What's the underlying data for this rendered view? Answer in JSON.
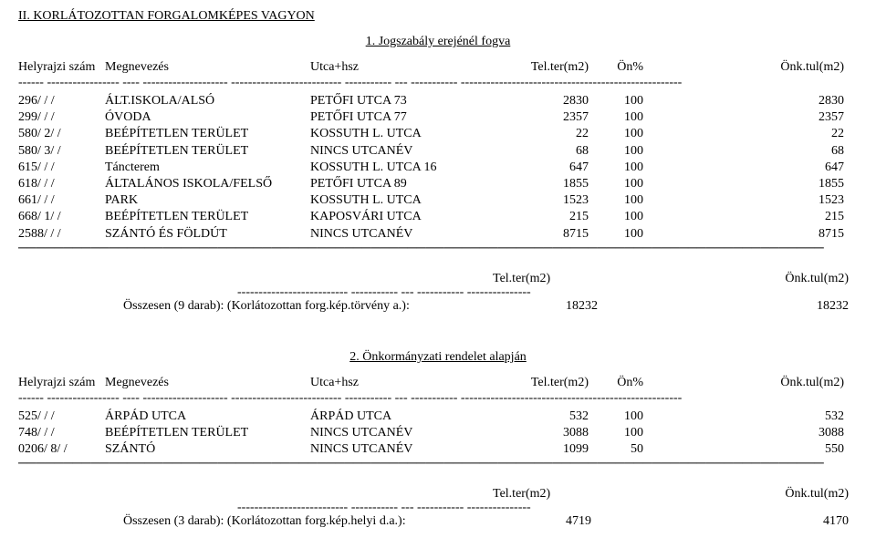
{
  "title": "II. KORLÁTOZOTTAN FORGALOMKÉPES VAGYON",
  "section1": {
    "subtitle": "1. Jogszabály erejénél fogva",
    "headers": {
      "ref": "Helyrajzi szám",
      "name": "Megnevezés",
      "addr": "Utca+hsz",
      "ter": "Tel.ter(m2)",
      "pct": "Ön%",
      "tul": "Önk.tul(m2)"
    },
    "dash_top": "------ ----------------- ---- -------------------- -------------------------- ----------- --- ----------- ----------------------------------------------------",
    "rows": [
      {
        "ref": "296/  / /",
        "name": "ÁLT.ISKOLA/ALSÓ",
        "addr": "PETŐFI UTCA 73",
        "ter": "2830",
        "pct": "100",
        "tul": "2830"
      },
      {
        "ref": "299/  / /",
        "name": "ÓVODA",
        "addr": "PETŐFI UTCA 77",
        "ter": "2357",
        "pct": "100",
        "tul": "2357"
      },
      {
        "ref": "580/  2/ /",
        "name": "BEÉPÍTETLEN TERÜLET",
        "addr": "KOSSUTH L. UTCA",
        "ter": "22",
        "pct": "100",
        "tul": "22"
      },
      {
        "ref": "580/  3/ /",
        "name": "BEÉPÍTETLEN TERÜLET",
        "addr": "NINCS UTCANÉV",
        "ter": "68",
        "pct": "100",
        "tul": "68"
      },
      {
        "ref": "615/  / /",
        "name": "Táncterem",
        "addr": "KOSSUTH L. UTCA 16",
        "ter": "647",
        "pct": "100",
        "tul": "647"
      },
      {
        "ref": "618/  / /",
        "name": "ÁLTALÁNOS ISKOLA/FELSŐ",
        "addr": "PETŐFI UTCA 89",
        "ter": "1855",
        "pct": "100",
        "tul": "1855"
      },
      {
        "ref": "661/  / /",
        "name": "PARK",
        "addr": "KOSSUTH L. UTCA",
        "ter": "1523",
        "pct": "100",
        "tul": "1523"
      },
      {
        "ref": "668/  1/ /",
        "name": "BEÉPÍTETLEN TERÜLET",
        "addr": "KAPOSVÁRI UTCA",
        "ter": "215",
        "pct": "100",
        "tul": "215"
      },
      {
        "ref": "2588/  / /",
        "name": "SZÁNTÓ ÉS FÖLDÚT",
        "addr": "NINCS UTCANÉV",
        "ter": "8715",
        "pct": "100",
        "tul": "8715"
      }
    ],
    "dash_bottom": "─────────────────────────────────────────────────────────────────────────────────────────",
    "summary": {
      "h_ter": "Tel.ter(m2)",
      "h_tul": "Önk.tul(m2)",
      "dash": "-------------------------- ----------- --- ----------- ---------------",
      "label": "Összesen (9 darab): (Korlátozottan forg.kép.törvény a.):",
      "val1": "18232",
      "val2": "18232"
    }
  },
  "section2": {
    "subtitle": "2.  Önkormányzati rendelet alapján",
    "headers": {
      "ref": "Helyrajzi szám",
      "name": "Megnevezés",
      "addr": "Utca+hsz",
      "ter": "Tel.ter(m2)",
      "pct": "Ön%",
      "tul": "Önk.tul(m2)"
    },
    "dash_top": "------ ----------------- ---- -------------------- -------------------------- ----------- --- ----------- ----------------------------------------------------",
    "rows": [
      {
        "ref": "525/  / /",
        "name": "ÁRPÁD UTCA",
        "addr": "ÁRPÁD UTCA",
        "ter": "532",
        "pct": "100",
        "tul": "532"
      },
      {
        "ref": "748/  / /",
        "name": "BEÉPÍTETLEN TERÜLET",
        "addr": "NINCS UTCANÉV",
        "ter": "3088",
        "pct": "100",
        "tul": "3088"
      },
      {
        "ref": "0206/  8/ /",
        "name": "SZÁNTÓ",
        "addr": "NINCS UTCANÉV",
        "ter": "1099",
        "pct": "50",
        "tul": "550"
      }
    ],
    "dash_bottom": "─────────────────────────────────────────────────────────────────────────────────────────",
    "summary": {
      "h_ter": "Tel.ter(m2)",
      "h_tul": "Önk.tul(m2)",
      "dash": "-------------------------- ----------- --- ----------- ---------------",
      "label": "Összesen (3 darab): (Korlátozottan forg.kép.helyi d.a.):",
      "val1": "4719",
      "val2": "4170"
    }
  }
}
